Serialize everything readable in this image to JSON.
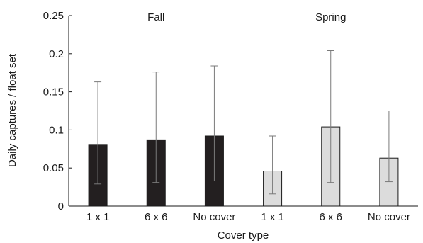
{
  "chart_data": {
    "type": "bar",
    "xlabel": "Cover type",
    "ylabel": "Daily captures / float set",
    "ylim": [
      0,
      0.25
    ],
    "yticks": [
      0,
      0.05,
      0.1,
      0.15,
      0.2,
      0.25
    ],
    "ytick_labels": [
      "0",
      "0.05",
      "0.1",
      "0.15",
      "0.2",
      "0.25"
    ],
    "grid": false,
    "groups": [
      {
        "label": "Fall",
        "color": "#231f20",
        "categories": [
          "1 x 1",
          "6 x 6",
          "No cover"
        ],
        "values": [
          0.081,
          0.087,
          0.092
        ],
        "error_low": [
          0.029,
          0.031,
          0.033
        ],
        "error_high": [
          0.163,
          0.176,
          0.184
        ]
      },
      {
        "label": "Spring",
        "color": "#dcdcdc",
        "categories": [
          "1 x 1",
          "6 x 6",
          "No cover"
        ],
        "values": [
          0.046,
          0.104,
          0.063
        ],
        "error_low": [
          0.016,
          0.031,
          0.032
        ],
        "error_high": [
          0.092,
          0.204,
          0.125
        ]
      }
    ]
  }
}
